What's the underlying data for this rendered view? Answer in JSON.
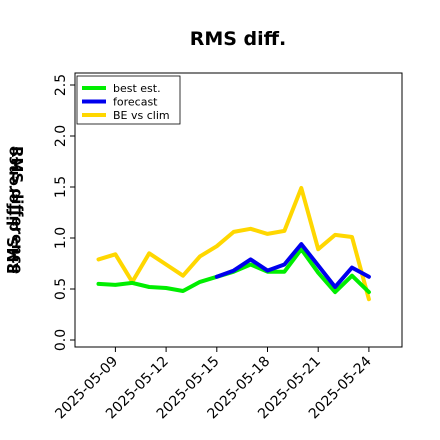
{
  "chart_data": {
    "type": "line",
    "title": "RMS diff.",
    "ylabel": "RMS difference",
    "ylabel2": "RMS difference",
    "xlabel": "",
    "ylim": [
      -0.05,
      2.6
    ],
    "yticks": [
      "0.0",
      "0.5",
      "1.0",
      "1.5",
      "2.0",
      "2.5"
    ],
    "ytick_values": [
      0.0,
      0.5,
      1.0,
      1.5,
      2.0,
      2.5
    ],
    "x_days": [
      8,
      9,
      10,
      11,
      12,
      13,
      14,
      15,
      16,
      17,
      18,
      19,
      20,
      21,
      22,
      23,
      24
    ],
    "xlim": [
      7.5,
      25.5
    ],
    "xtick_days": [
      9,
      12,
      15,
      18,
      21,
      24
    ],
    "xticks": [
      "2025-05-09",
      "2025-05-12",
      "2025-05-15",
      "2025-05-18",
      "2025-05-21",
      "2025-05-24"
    ],
    "highlight_tick": "2025-05-15",
    "highlight_color": "#228b22",
    "legend_position": "top-left",
    "grid": false,
    "series": [
      {
        "name": "best est.",
        "color": "#00ee00",
        "x": [
          8,
          9,
          10,
          11,
          12,
          13,
          14,
          15,
          16,
          17,
          18,
          19,
          20,
          21,
          22,
          23,
          24
        ],
        "values": [
          0.55,
          0.54,
          0.56,
          0.52,
          0.51,
          0.48,
          0.57,
          0.62,
          0.67,
          0.74,
          0.67,
          0.67,
          0.89,
          0.66,
          0.47,
          0.63,
          0.47
        ]
      },
      {
        "name": "forecast",
        "color": "#0000ee",
        "x": [
          15,
          16,
          17,
          18,
          19,
          20,
          21,
          22,
          23,
          24
        ],
        "values": [
          0.62,
          0.68,
          0.79,
          0.68,
          0.74,
          0.94,
          0.73,
          0.52,
          0.71,
          0.62
        ]
      },
      {
        "name": "BE vs clim",
        "color": "#ffd700",
        "x": [
          8,
          9,
          10,
          11,
          12,
          13,
          14,
          15,
          16,
          17,
          18,
          19,
          20,
          21,
          22,
          23,
          24
        ],
        "values": [
          0.79,
          0.84,
          0.57,
          0.85,
          0.74,
          0.63,
          0.82,
          0.92,
          1.06,
          1.09,
          1.04,
          1.07,
          1.49,
          0.89,
          1.03,
          1.01,
          0.4
        ]
      }
    ]
  }
}
